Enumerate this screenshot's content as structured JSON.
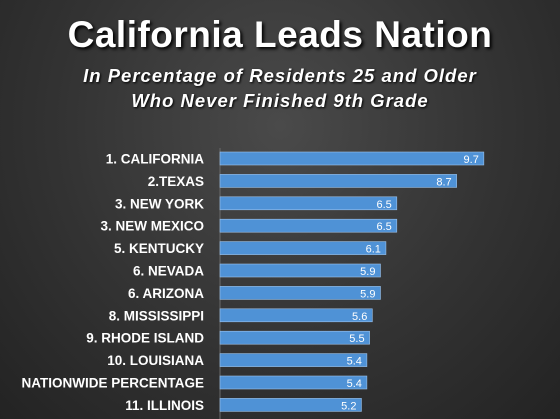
{
  "colors": {
    "bar": "#4f92d6",
    "bar_edge": "#9cc3ec",
    "background": "#333333",
    "text": "#ffffff"
  },
  "chart_data": {
    "type": "bar",
    "orientation": "horizontal",
    "title": "California Leads Nation",
    "subtitle_line1": "In Percentage of Residents 25 and Older",
    "subtitle_line2": "Who Never Finished 9th Grade",
    "categories": [
      "1. CALIFORNIA",
      "2.TEXAS",
      "3. NEW YORK",
      "3. NEW MEXICO",
      "5. KENTUCKY",
      "6. NEVADA",
      "6. ARIZONA",
      "8. MISSISSIPPI",
      "9. RHODE ISLAND",
      "10. LOUISIANA",
      "NATIONWIDE PERCENTAGE",
      "11. ILLINOIS"
    ],
    "values": [
      9.7,
      8.7,
      6.5,
      6.5,
      6.1,
      5.9,
      5.9,
      5.6,
      5.5,
      5.4,
      5.4,
      5.2
    ],
    "data_labels": [
      "9.7",
      "8.7",
      "6.5",
      "6.5",
      "6.1",
      "5.9",
      "5.9",
      "5.6",
      "5.5",
      "5.4",
      "5.4",
      "5.2"
    ],
    "xlim": [
      0,
      10
    ],
    "grid": false,
    "legend": "none"
  }
}
